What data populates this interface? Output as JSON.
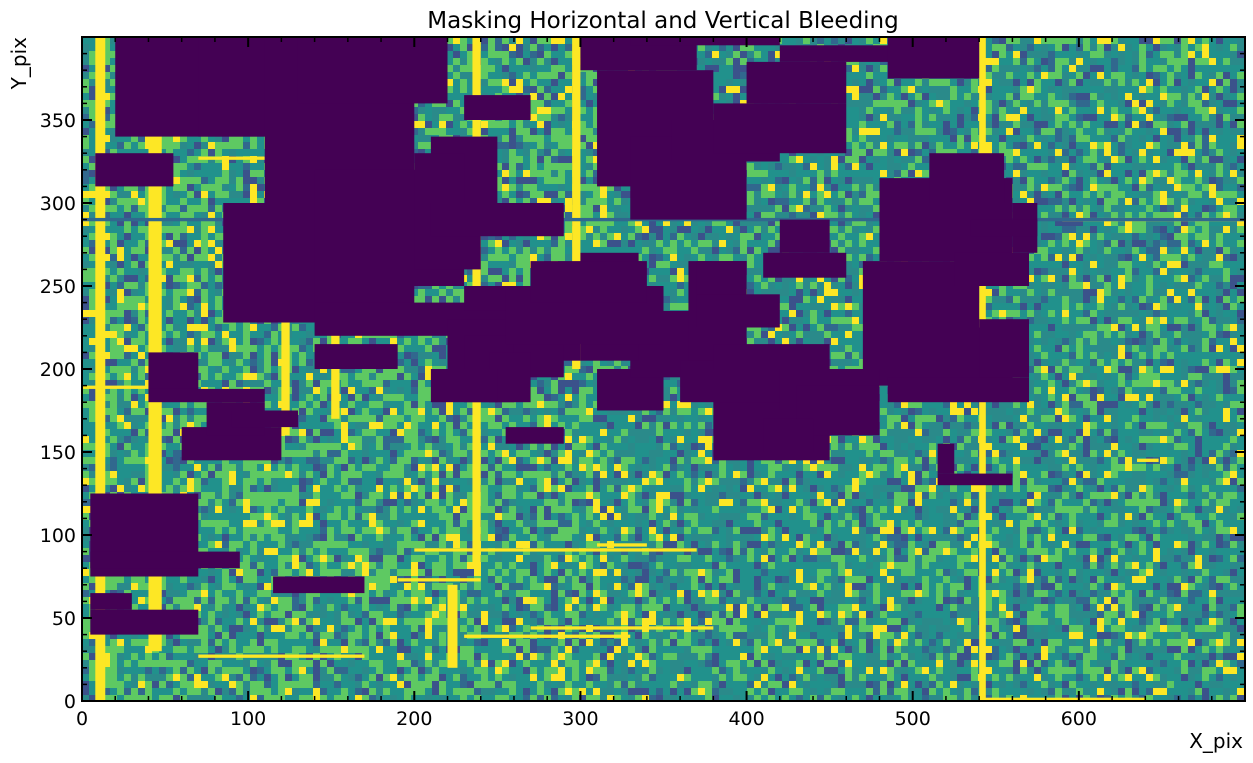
{
  "chart_data": {
    "type": "heatmap",
    "title": "Masking Horizontal and Vertical Bleeding",
    "xlabel": "X_pix",
    "ylabel": "Y_pix",
    "xlim": [
      0,
      700
    ],
    "ylim": [
      0,
      400
    ],
    "xticks": [
      0,
      100,
      200,
      300,
      400,
      500,
      600
    ],
    "yticks": [
      0,
      50,
      100,
      150,
      200,
      250,
      300,
      350
    ],
    "colormap": "viridis",
    "colors": {
      "masked": "#440154",
      "background": "#2a8a8a",
      "noise_mid": "#21918c",
      "noise_high": "#5ec962",
      "saturated": "#fde725"
    },
    "masked_regions": [
      [
        20,
        340,
        110,
        400
      ],
      [
        70,
        340,
        130,
        400
      ],
      [
        110,
        300,
        200,
        400
      ],
      [
        130,
        360,
        220,
        400
      ],
      [
        8,
        310,
        55,
        330
      ],
      [
        85,
        228,
        160,
        300
      ],
      [
        140,
        250,
        230,
        320
      ],
      [
        140,
        230,
        200,
        250
      ],
      [
        200,
        260,
        240,
        300
      ],
      [
        210,
        280,
        290,
        300
      ],
      [
        230,
        350,
        270,
        365
      ],
      [
        210,
        300,
        250,
        340
      ],
      [
        140,
        220,
        280,
        240
      ],
      [
        140,
        200,
        190,
        215
      ],
      [
        275,
        205,
        300,
        225
      ],
      [
        310,
        175,
        350,
        200
      ],
      [
        230,
        235,
        260,
        250
      ],
      [
        220,
        195,
        290,
        230
      ],
      [
        230,
        180,
        260,
        220
      ],
      [
        330,
        195,
        390,
        235
      ],
      [
        300,
        205,
        335,
        270
      ],
      [
        360,
        195,
        395,
        205
      ],
      [
        365,
        205,
        400,
        265
      ],
      [
        255,
        215,
        350,
        250
      ],
      [
        270,
        240,
        340,
        265
      ],
      [
        310,
        310,
        360,
        350
      ],
      [
        330,
        290,
        400,
        340
      ],
      [
        310,
        350,
        380,
        380
      ],
      [
        355,
        325,
        420,
        350
      ],
      [
        380,
        330,
        460,
        360
      ],
      [
        400,
        360,
        460,
        385
      ],
      [
        420,
        385,
        490,
        395
      ],
      [
        300,
        380,
        370,
        400
      ],
      [
        330,
        395,
        420,
        400
      ],
      [
        485,
        375,
        540,
        400
      ],
      [
        480,
        265,
        560,
        315
      ],
      [
        560,
        270,
        575,
        300
      ],
      [
        510,
        300,
        555,
        330
      ],
      [
        470,
        225,
        540,
        265
      ],
      [
        470,
        190,
        560,
        225
      ],
      [
        540,
        195,
        570,
        230
      ],
      [
        485,
        180,
        570,
        195
      ],
      [
        380,
        145,
        450,
        215
      ],
      [
        420,
        175,
        480,
        200
      ],
      [
        430,
        160,
        480,
        190
      ],
      [
        410,
        150,
        440,
        170
      ],
      [
        360,
        180,
        420,
        200
      ],
      [
        370,
        245,
        400,
        265
      ],
      [
        370,
        225,
        420,
        245
      ],
      [
        410,
        255,
        460,
        270
      ],
      [
        420,
        270,
        450,
        290
      ],
      [
        5,
        75,
        70,
        125
      ],
      [
        5,
        80,
        95,
        90
      ],
      [
        5,
        40,
        70,
        55
      ],
      [
        5,
        55,
        30,
        65
      ],
      [
        40,
        185,
        70,
        210
      ],
      [
        40,
        180,
        110,
        188
      ],
      [
        60,
        145,
        120,
        165
      ],
      [
        75,
        160,
        110,
        180
      ],
      [
        90,
        165,
        130,
        175
      ],
      [
        255,
        155,
        290,
        165
      ],
      [
        245,
        180,
        270,
        210
      ],
      [
        210,
        180,
        250,
        200
      ],
      [
        115,
        65,
        170,
        75
      ],
      [
        515,
        130,
        560,
        137
      ],
      [
        515,
        137,
        525,
        155
      ],
      [
        525,
        250,
        570,
        270
      ],
      [
        535,
        280,
        575,
        290
      ],
      [
        200,
        300,
        230,
        330
      ]
    ],
    "bleed_lines": {
      "horizontal": [
        [
          200,
          90,
          370,
          92
        ],
        [
          310,
          93,
          340,
          95
        ],
        [
          70,
          26,
          170,
          28
        ],
        [
          270,
          43,
          380,
          45
        ],
        [
          230,
          38,
          330,
          40
        ],
        [
          190,
          72,
          240,
          74
        ],
        [
          590,
          289,
          700,
          291
        ],
        [
          635,
          144,
          648,
          146
        ],
        [
          540,
          0,
          640,
          2
        ],
        [
          70,
          326,
          110,
          328
        ],
        [
          0,
          188,
          40,
          190
        ]
      ],
      "vertical": [
        [
          8,
          0,
          14,
          400
        ],
        [
          40,
          30,
          48,
          400
        ],
        [
          235,
          80,
          240,
          400
        ],
        [
          295,
          200,
          300,
          400
        ],
        [
          540,
          0,
          544,
          400
        ],
        [
          120,
          160,
          125,
          330
        ],
        [
          150,
          170,
          155,
          300
        ],
        [
          220,
          20,
          226,
          70
        ]
      ],
      "dark_row": [
        [
          0,
          289,
          700,
          291
        ]
      ]
    }
  }
}
